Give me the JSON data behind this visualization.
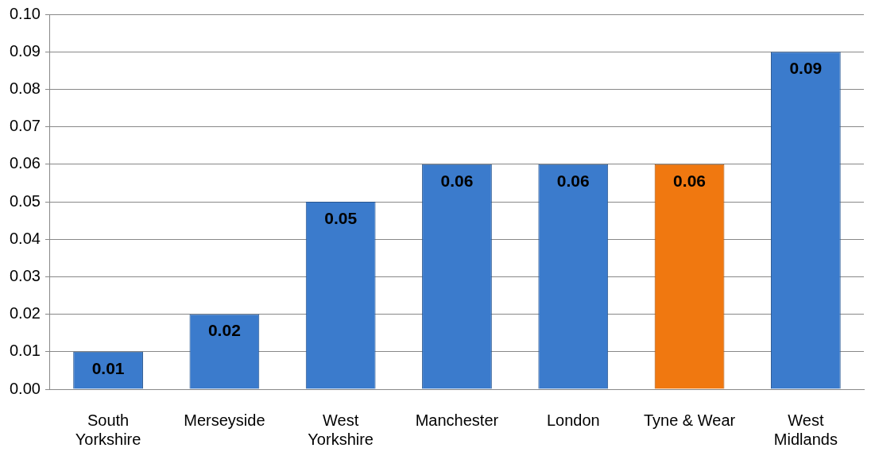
{
  "chart_data": {
    "type": "bar",
    "categories": [
      "South Yorkshire",
      "Merseyside",
      "West Yorkshire",
      "Manchester",
      "London",
      "Tyne & Wear",
      "West Midlands"
    ],
    "values": [
      0.01,
      0.02,
      0.05,
      0.06,
      0.06,
      0.06,
      0.09
    ],
    "colors": [
      "#3b7bcc",
      "#3b7bcc",
      "#3b7bcc",
      "#3b7bcc",
      "#3b7bcc",
      "#f07810",
      "#3b7bcc"
    ],
    "ylim": [
      0,
      0.1
    ],
    "yticks": [
      "0.00",
      "0.01",
      "0.02",
      "0.03",
      "0.04",
      "0.05",
      "0.06",
      "0.07",
      "0.08",
      "0.09",
      "0.10"
    ],
    "grid": "y",
    "data_labels": true,
    "legend": false
  }
}
